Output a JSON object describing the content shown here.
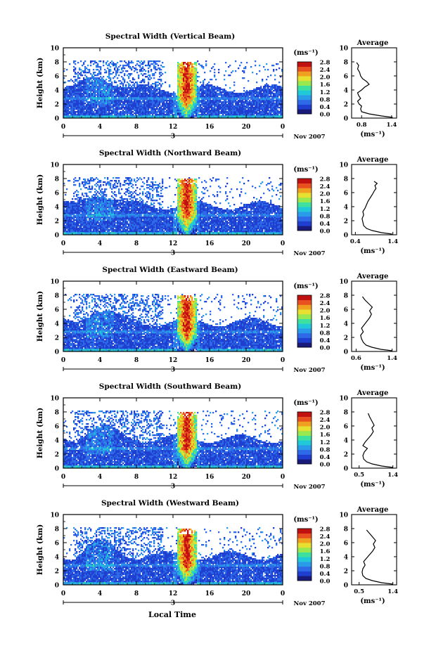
{
  "figure": {
    "xlabel": "Local Time",
    "date_label": "Nov 2007",
    "day_label": "3",
    "colorbar_unit": "(ms⁻¹)",
    "colorbar_ticks": [
      "0.0",
      "0.4",
      "0.8",
      "1.2",
      "1.6",
      "2.0",
      "2.4",
      "2.8"
    ],
    "avg_title": "Average",
    "avg_unit": "(ms⁻¹)",
    "colormap": [
      "#1a1a7a",
      "#1f3fd0",
      "#2e6ae8",
      "#2a9be8",
      "#20c8d8",
      "#3ee0a0",
      "#9ae850",
      "#e8e030",
      "#f0a020",
      "#e85020",
      "#c01010"
    ]
  },
  "chart_data": [
    {
      "type": "heatmap",
      "title": "Spectral Width (Vertical Beam)",
      "ylabel": "Height (km)",
      "x_ticks": [
        "0",
        "4",
        "8",
        "12",
        "16",
        "20",
        "0"
      ],
      "y_ticks": [
        "0",
        "2",
        "4",
        "6",
        "8",
        "10"
      ],
      "xlim": [
        0,
        24
      ],
      "ylim": [
        0,
        10
      ],
      "clim": [
        0,
        2.8
      ],
      "average": {
        "type": "line",
        "x_ticks": [
          "0.8",
          "1.4"
        ],
        "y_ticks": [
          "0",
          "2",
          "4",
          "6",
          "8",
          "10"
        ],
        "xlim": [
          0.6,
          1.5
        ],
        "ylim": [
          0,
          10
        ],
        "profile": [
          [
            1.42,
            0.1
          ],
          [
            1.2,
            0.3
          ],
          [
            0.95,
            0.6
          ],
          [
            0.8,
            0.9
          ],
          [
            0.78,
            1.3
          ],
          [
            0.8,
            1.7
          ],
          [
            0.75,
            2.0
          ],
          [
            0.72,
            2.4
          ],
          [
            0.78,
            2.8
          ],
          [
            0.74,
            3.2
          ],
          [
            0.72,
            3.6
          ],
          [
            0.8,
            4.0
          ],
          [
            0.86,
            4.4
          ],
          [
            0.95,
            4.8
          ],
          [
            0.9,
            5.2
          ],
          [
            0.82,
            5.6
          ],
          [
            0.78,
            6.0
          ],
          [
            0.76,
            6.5
          ],
          [
            0.72,
            7.0
          ],
          [
            0.74,
            7.5
          ],
          [
            0.7,
            7.9
          ]
        ]
      }
    },
    {
      "type": "heatmap",
      "title": "Spectral Width (Northward Beam)",
      "ylabel": "Height (km)",
      "x_ticks": [
        "0",
        "4",
        "8",
        "12",
        "16",
        "20",
        "0"
      ],
      "y_ticks": [
        "0",
        "2",
        "4",
        "6",
        "8",
        "10"
      ],
      "xlim": [
        0,
        24
      ],
      "ylim": [
        0,
        10
      ],
      "clim": [
        0,
        2.8
      ],
      "average": {
        "type": "line",
        "x_ticks": [
          "0.4",
          "1.4"
        ],
        "y_ticks": [
          "0",
          "2",
          "4",
          "6",
          "8",
          "10"
        ],
        "xlim": [
          0.3,
          1.5
        ],
        "ylim": [
          0,
          10
        ],
        "profile": [
          [
            1.38,
            0.1
          ],
          [
            1.1,
            0.3
          ],
          [
            0.85,
            0.6
          ],
          [
            0.7,
            0.9
          ],
          [
            0.62,
            1.3
          ],
          [
            0.6,
            1.8
          ],
          [
            0.58,
            2.3
          ],
          [
            0.62,
            2.8
          ],
          [
            0.6,
            3.3
          ],
          [
            0.66,
            3.8
          ],
          [
            0.7,
            4.3
          ],
          [
            0.74,
            4.8
          ],
          [
            0.8,
            5.3
          ],
          [
            0.86,
            5.8
          ],
          [
            0.9,
            6.2
          ],
          [
            0.95,
            6.6
          ],
          [
            0.92,
            7.0
          ],
          [
            0.98,
            7.3
          ],
          [
            0.9,
            7.6
          ]
        ]
      }
    },
    {
      "type": "heatmap",
      "title": "Spectral Width (Eastward Beam)",
      "ylabel": "Height (km)",
      "x_ticks": [
        "0",
        "4",
        "8",
        "12",
        "16",
        "20",
        "0"
      ],
      "y_ticks": [
        "0",
        "2",
        "4",
        "6",
        "8",
        "10"
      ],
      "xlim": [
        0,
        24
      ],
      "ylim": [
        0,
        10
      ],
      "clim": [
        0,
        2.8
      ],
      "average": {
        "type": "line",
        "x_ticks": [
          "0.6",
          "1.4"
        ],
        "y_ticks": [
          "0",
          "2",
          "4",
          "6",
          "8",
          "10"
        ],
        "xlim": [
          0.5,
          1.5
        ],
        "ylim": [
          0,
          10
        ],
        "profile": [
          [
            1.4,
            0.1
          ],
          [
            1.15,
            0.3
          ],
          [
            0.95,
            0.6
          ],
          [
            0.82,
            0.9
          ],
          [
            0.76,
            1.3
          ],
          [
            0.72,
            1.8
          ],
          [
            0.7,
            2.3
          ],
          [
            0.76,
            2.8
          ],
          [
            0.72,
            3.3
          ],
          [
            0.78,
            3.8
          ],
          [
            0.84,
            4.3
          ],
          [
            0.9,
            4.8
          ],
          [
            0.94,
            5.3
          ],
          [
            0.9,
            5.8
          ],
          [
            0.96,
            6.3
          ],
          [
            0.88,
            6.8
          ],
          [
            0.8,
            7.3
          ],
          [
            0.74,
            7.8
          ]
        ]
      }
    },
    {
      "type": "heatmap",
      "title": "Spectral Width (Southward Beam)",
      "ylabel": "Height (km)",
      "x_ticks": [
        "0",
        "4",
        "8",
        "12",
        "16",
        "20",
        "0"
      ],
      "y_ticks": [
        "0",
        "2",
        "4",
        "6",
        "8",
        "10"
      ],
      "xlim": [
        0,
        24
      ],
      "ylim": [
        0,
        10
      ],
      "clim": [
        0,
        2.8
      ],
      "average": {
        "type": "line",
        "x_ticks": [
          "0.5",
          "1.4"
        ],
        "y_ticks": [
          "0",
          "2",
          "4",
          "6",
          "8",
          "10"
        ],
        "xlim": [
          0.3,
          1.5
        ],
        "ylim": [
          0,
          10
        ],
        "profile": [
          [
            1.4,
            0.1
          ],
          [
            1.1,
            0.3
          ],
          [
            0.85,
            0.6
          ],
          [
            0.7,
            0.9
          ],
          [
            0.62,
            1.3
          ],
          [
            0.6,
            1.8
          ],
          [
            0.64,
            2.3
          ],
          [
            0.72,
            2.8
          ],
          [
            0.6,
            3.2
          ],
          [
            0.66,
            3.7
          ],
          [
            0.74,
            4.2
          ],
          [
            0.82,
            4.7
          ],
          [
            0.88,
            5.2
          ],
          [
            0.84,
            5.7
          ],
          [
            0.9,
            6.1
          ],
          [
            0.86,
            6.5
          ],
          [
            0.82,
            6.9
          ],
          [
            0.78,
            7.3
          ],
          [
            0.74,
            7.8
          ]
        ]
      }
    },
    {
      "type": "heatmap",
      "title": "Spectral Width (Westward Beam)",
      "ylabel": "Height (km)",
      "x_ticks": [
        "0",
        "4",
        "8",
        "12",
        "16",
        "20",
        "0"
      ],
      "y_ticks": [
        "0",
        "2",
        "4",
        "6",
        "8",
        "10"
      ],
      "xlim": [
        0,
        24
      ],
      "ylim": [
        0,
        10
      ],
      "clim": [
        0,
        2.8
      ],
      "average": {
        "type": "line",
        "x_ticks": [
          "0.5",
          "1.4"
        ],
        "y_ticks": [
          "0",
          "2",
          "4",
          "6",
          "8",
          "10"
        ],
        "xlim": [
          0.3,
          1.5
        ],
        "ylim": [
          0,
          10
        ],
        "profile": [
          [
            1.4,
            0.1
          ],
          [
            1.1,
            0.3
          ],
          [
            0.85,
            0.6
          ],
          [
            0.68,
            0.9
          ],
          [
            0.6,
            1.3
          ],
          [
            0.58,
            1.8
          ],
          [
            0.6,
            2.3
          ],
          [
            0.66,
            2.8
          ],
          [
            0.62,
            3.3
          ],
          [
            0.7,
            3.8
          ],
          [
            0.78,
            4.3
          ],
          [
            0.86,
            4.8
          ],
          [
            0.92,
            5.3
          ],
          [
            0.88,
            5.8
          ],
          [
            0.94,
            6.3
          ],
          [
            0.86,
            6.8
          ],
          [
            0.78,
            7.3
          ],
          [
            0.7,
            7.8
          ]
        ]
      }
    }
  ]
}
